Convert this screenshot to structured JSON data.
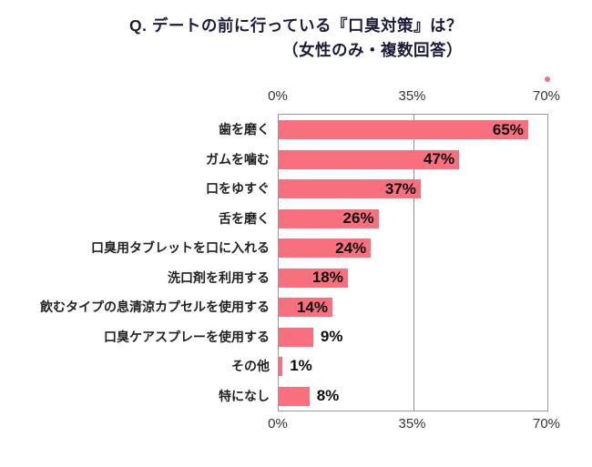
{
  "title": {
    "line1": "Q. デートの前に行っている『口臭対策』は？",
    "line2": "（女性のみ・複数回答）"
  },
  "chart_data": {
    "type": "bar",
    "orientation": "horizontal",
    "title": "Q. デートの前に行っている『口臭対策』は？（女性のみ・複数回答）",
    "categories": [
      "歯を磨く",
      "ガムを噛む",
      "口をゆすぐ",
      "舌を磨く",
      "口臭用タブレットを口に入れる",
      "洗口剤を利用する",
      "飲むタイプの息清涼カプセルを使用する",
      "口臭ケアスプレーを使用する",
      "その他",
      "特になし"
    ],
    "values": [
      65,
      47,
      37,
      26,
      24,
      18,
      14,
      9,
      1,
      8
    ],
    "value_labels": [
      "65%",
      "47%",
      "37%",
      "26%",
      "24%",
      "18%",
      "14%",
      "9%",
      "1%",
      "8%"
    ],
    "x_ticks": [
      "0%",
      "35%",
      "70%"
    ],
    "xlim": [
      0,
      70
    ],
    "grid": true,
    "legend": "none",
    "bar_color": "#f8707e"
  },
  "colors": {
    "accent": "#f8707e",
    "title_text": "#1c1c3a",
    "axis_line": "#999999"
  }
}
